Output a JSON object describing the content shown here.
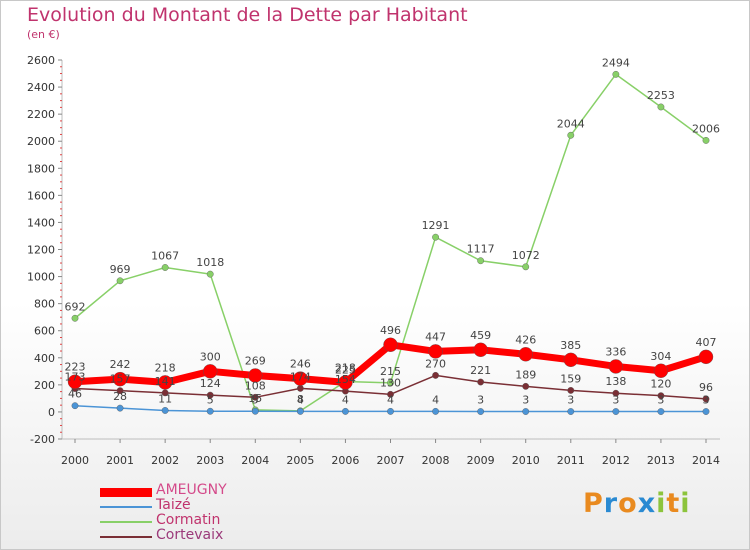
{
  "header": {
    "title": "Evolution du Montant de la Dette par Habitant",
    "subtitle": "(en €)"
  },
  "logo": {
    "letters": [
      "P",
      "r",
      "o",
      "x",
      "i",
      "t",
      "i"
    ],
    "colors": [
      "#e98a1f",
      "#2a8ad2",
      "#e98a1f",
      "#2a8ad2",
      "#8cc43c",
      "#e98a1f",
      "#8cc43c"
    ]
  },
  "chart_data": {
    "type": "line",
    "title": "Evolution du Montant de la Dette par Habitant",
    "subtitle": "(en €)",
    "xlabel": "",
    "ylabel": "",
    "x": [
      2000,
      2001,
      2002,
      2003,
      2004,
      2005,
      2006,
      2007,
      2008,
      2009,
      2010,
      2011,
      2012,
      2013,
      2014
    ],
    "ylim": [
      -200,
      2600
    ],
    "yticks": [
      -200,
      0,
      200,
      400,
      600,
      800,
      1000,
      1200,
      1400,
      1600,
      1800,
      2000,
      2200,
      2400,
      2600
    ],
    "grid": false,
    "legend_position": "bottom-left",
    "series": [
      {
        "name": "AMEUGNY",
        "color": "#ff0000",
        "values": [
          223,
          242,
          218,
          300,
          269,
          246,
          218,
          496,
          447,
          459,
          426,
          385,
          336,
          304,
          407
        ],
        "labels": [
          "223",
          "242",
          "218",
          "300",
          "269",
          "246",
          "218",
          "496",
          "447",
          "459",
          "426",
          "385",
          "336",
          "304",
          "407"
        ]
      },
      {
        "name": "Taizé",
        "color": "#4b94d6",
        "values": [
          46,
          28,
          11,
          5,
          5,
          4,
          4,
          4,
          4,
          3,
          3,
          3,
          3,
          3,
          3
        ],
        "labels": [
          "46",
          "28",
          "11",
          "5",
          "5",
          "4",
          "4",
          "4",
          "4",
          "3",
          "3",
          "3",
          "3",
          "3",
          "3"
        ]
      },
      {
        "name": "Cormatin",
        "color": "#88d068",
        "values": [
          692,
          969,
          1067,
          1018,
          15,
          8,
          225,
          215,
          1291,
          1117,
          1072,
          2044,
          2494,
          2253,
          2006
        ],
        "labels": [
          "692",
          "969",
          "1067",
          "1018",
          "15",
          "8",
          "225",
          "215",
          "1291",
          "1117",
          "1072",
          "2044",
          "2494",
          "2253",
          "2006"
        ]
      },
      {
        "name": "Cortevaix",
        "color": "#7a2f35",
        "values": [
          173,
          157,
          141,
          124,
          108,
          174,
          154,
          130,
          270,
          221,
          189,
          159,
          138,
          120,
          96
        ],
        "labels": [
          "173",
          "157",
          "141",
          "124",
          "108",
          "174",
          "154",
          "130",
          "270",
          "221",
          "189",
          "159",
          "138",
          "120",
          "96"
        ]
      }
    ]
  }
}
